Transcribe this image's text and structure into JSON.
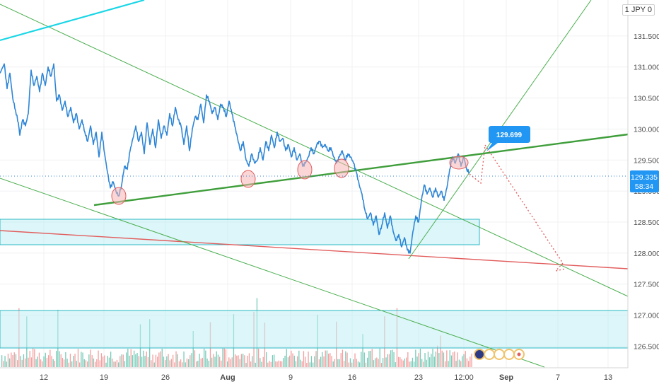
{
  "header": {
    "currency_label": "JPY",
    "currency_prefix": "1",
    "currency_suffix": "0"
  },
  "chart_data": {
    "type": "line",
    "instrument_currency": "JPY",
    "y_axis": {
      "ticks": [
        "131.500",
        "131.000",
        "130.500",
        "130.000",
        "129.500",
        "129.000",
        "128.500",
        "128.000",
        "127.500",
        "127.000",
        "126.500"
      ],
      "range": [
        126.38,
        131.92
      ]
    },
    "x_axis": {
      "ticks": [
        "12",
        "19",
        "26",
        "Aug",
        "9",
        "16",
        "23",
        "12:00",
        "Sep",
        "7",
        "13"
      ],
      "bold_ticks": [
        "Aug",
        "Sep"
      ]
    },
    "price_series": {
      "color": "#2f86d6",
      "points": [
        [
          0,
          130.9
        ],
        [
          6,
          131.05
        ],
        [
          10,
          130.65
        ],
        [
          14,
          130.9
        ],
        [
          18,
          130.5
        ],
        [
          22,
          130.3
        ],
        [
          26,
          130.1
        ],
        [
          28,
          129.9
        ],
        [
          32,
          130.15
        ],
        [
          36,
          130.05
        ],
        [
          40,
          130.25
        ],
        [
          44,
          130.95
        ],
        [
          48,
          130.7
        ],
        [
          52,
          130.85
        ],
        [
          56,
          130.6
        ],
        [
          60,
          130.9
        ],
        [
          64,
          130.7
        ],
        [
          68,
          131.0
        ],
        [
          72,
          130.85
        ],
        [
          76,
          131.05
        ],
        [
          80,
          130.45
        ],
        [
          84,
          130.55
        ],
        [
          88,
          130.3
        ],
        [
          92,
          130.45
        ],
        [
          96,
          130.2
        ],
        [
          100,
          130.35
        ],
        [
          104,
          130.1
        ],
        [
          108,
          130.25
        ],
        [
          112,
          130.0
        ],
        [
          116,
          130.15
        ],
        [
          120,
          129.95
        ],
        [
          124,
          129.8
        ],
        [
          128,
          130.05
        ],
        [
          132,
          129.75
        ],
        [
          136,
          129.95
        ],
        [
          140,
          129.55
        ],
        [
          144,
          129.95
        ],
        [
          148,
          129.6
        ],
        [
          152,
          129.3
        ],
        [
          156,
          129.05
        ],
        [
          160,
          129.15
        ],
        [
          164,
          129.0
        ],
        [
          168,
          128.92
        ],
        [
          172,
          129.1
        ],
        [
          176,
          129.4
        ],
        [
          180,
          129.35
        ],
        [
          184,
          129.65
        ],
        [
          188,
          129.85
        ],
        [
          192,
          130.05
        ],
        [
          196,
          129.8
        ],
        [
          200,
          129.95
        ],
        [
          204,
          129.6
        ],
        [
          208,
          130.1
        ],
        [
          212,
          129.75
        ],
        [
          216,
          130.0
        ],
        [
          220,
          129.7
        ],
        [
          224,
          130.15
        ],
        [
          228,
          129.85
        ],
        [
          232,
          130.05
        ],
        [
          236,
          129.9
        ],
        [
          240,
          130.25
        ],
        [
          244,
          130.05
        ],
        [
          248,
          130.35
        ],
        [
          252,
          130.15
        ],
        [
          256,
          130.05
        ],
        [
          260,
          129.75
        ],
        [
          264,
          130.05
        ],
        [
          268,
          129.65
        ],
        [
          272,
          130.0
        ],
        [
          276,
          130.2
        ],
        [
          280,
          130.15
        ],
        [
          284,
          130.4
        ],
        [
          288,
          130.1
        ],
        [
          292,
          130.55
        ],
        [
          296,
          130.45
        ],
        [
          300,
          130.25
        ],
        [
          304,
          130.35
        ],
        [
          308,
          130.15
        ],
        [
          312,
          130.4
        ],
        [
          316,
          130.35
        ],
        [
          320,
          130.2
        ],
        [
          324,
          130.45
        ],
        [
          328,
          130.25
        ],
        [
          332,
          130.05
        ],
        [
          336,
          129.85
        ],
        [
          340,
          129.65
        ],
        [
          344,
          129.8
        ],
        [
          348,
          129.5
        ],
        [
          352,
          129.4
        ],
        [
          356,
          129.6
        ],
        [
          360,
          129.45
        ],
        [
          364,
          129.5
        ],
        [
          368,
          129.7
        ],
        [
          372,
          129.5
        ],
        [
          376,
          129.8
        ],
        [
          380,
          129.65
        ],
        [
          384,
          129.9
        ],
        [
          388,
          129.7
        ],
        [
          392,
          129.95
        ],
        [
          396,
          129.8
        ],
        [
          400,
          129.85
        ],
        [
          404,
          129.65
        ],
        [
          408,
          129.75
        ],
        [
          412,
          129.55
        ],
        [
          416,
          129.7
        ],
        [
          420,
          129.5
        ],
        [
          424,
          129.6
        ],
        [
          428,
          129.4
        ],
        [
          432,
          129.45
        ],
        [
          436,
          129.55
        ],
        [
          440,
          129.7
        ],
        [
          444,
          129.6
        ],
        [
          448,
          129.75
        ],
        [
          452,
          129.8
        ],
        [
          456,
          129.7
        ],
        [
          460,
          129.75
        ],
        [
          464,
          129.65
        ],
        [
          468,
          129.7
        ],
        [
          472,
          129.55
        ],
        [
          476,
          129.45
        ],
        [
          480,
          129.55
        ],
        [
          484,
          129.65
        ],
        [
          488,
          129.5
        ],
        [
          492,
          129.6
        ],
        [
          496,
          129.55
        ],
        [
          500,
          129.45
        ],
        [
          504,
          129.3
        ],
        [
          508,
          129.1
        ],
        [
          512,
          128.95
        ],
        [
          516,
          128.7
        ],
        [
          520,
          128.55
        ],
        [
          524,
          128.65
        ],
        [
          528,
          128.45
        ],
        [
          532,
          128.6
        ],
        [
          536,
          128.3
        ],
        [
          540,
          128.45
        ],
        [
          544,
          128.65
        ],
        [
          548,
          128.4
        ],
        [
          552,
          128.6
        ],
        [
          556,
          128.35
        ],
        [
          560,
          128.2
        ],
        [
          564,
          128.3
        ],
        [
          568,
          128.1
        ],
        [
          572,
          128.25
        ],
        [
          576,
          128.05
        ],
        [
          580,
          128.0
        ],
        [
          584,
          128.35
        ],
        [
          588,
          128.6
        ],
        [
          592,
          128.5
        ],
        [
          596,
          128.85
        ],
        [
          600,
          129.1
        ],
        [
          604,
          128.95
        ],
        [
          608,
          129.05
        ],
        [
          612,
          128.9
        ],
        [
          616,
          129.05
        ],
        [
          620,
          128.9
        ],
        [
          624,
          129.0
        ],
        [
          628,
          128.85
        ],
        [
          632,
          129.05
        ],
        [
          636,
          129.35
        ],
        [
          640,
          129.55
        ],
        [
          644,
          129.45
        ],
        [
          648,
          129.6
        ],
        [
          652,
          129.4
        ],
        [
          656,
          129.55
        ],
        [
          660,
          129.35
        ],
        [
          664,
          129.3
        ]
      ]
    },
    "last_price": "129.335",
    "countdown": "58:34",
    "target_label": "129.699",
    "volume_bars": {
      "up_color": "#3fb59a",
      "down_color": "#ef7676"
    },
    "annotations": {
      "support_trend": "up-sloping green line",
      "descending_channel": "two thin green parallel lines",
      "resistance_box": "light-cyan rectangle",
      "lower_box": "light-cyan rectangle",
      "red_line": "declining red line",
      "projection": "dotted red zig-zag to lower red line",
      "cyan_line": "cyan line top-left"
    },
    "grid": true,
    "legend": "none"
  }
}
